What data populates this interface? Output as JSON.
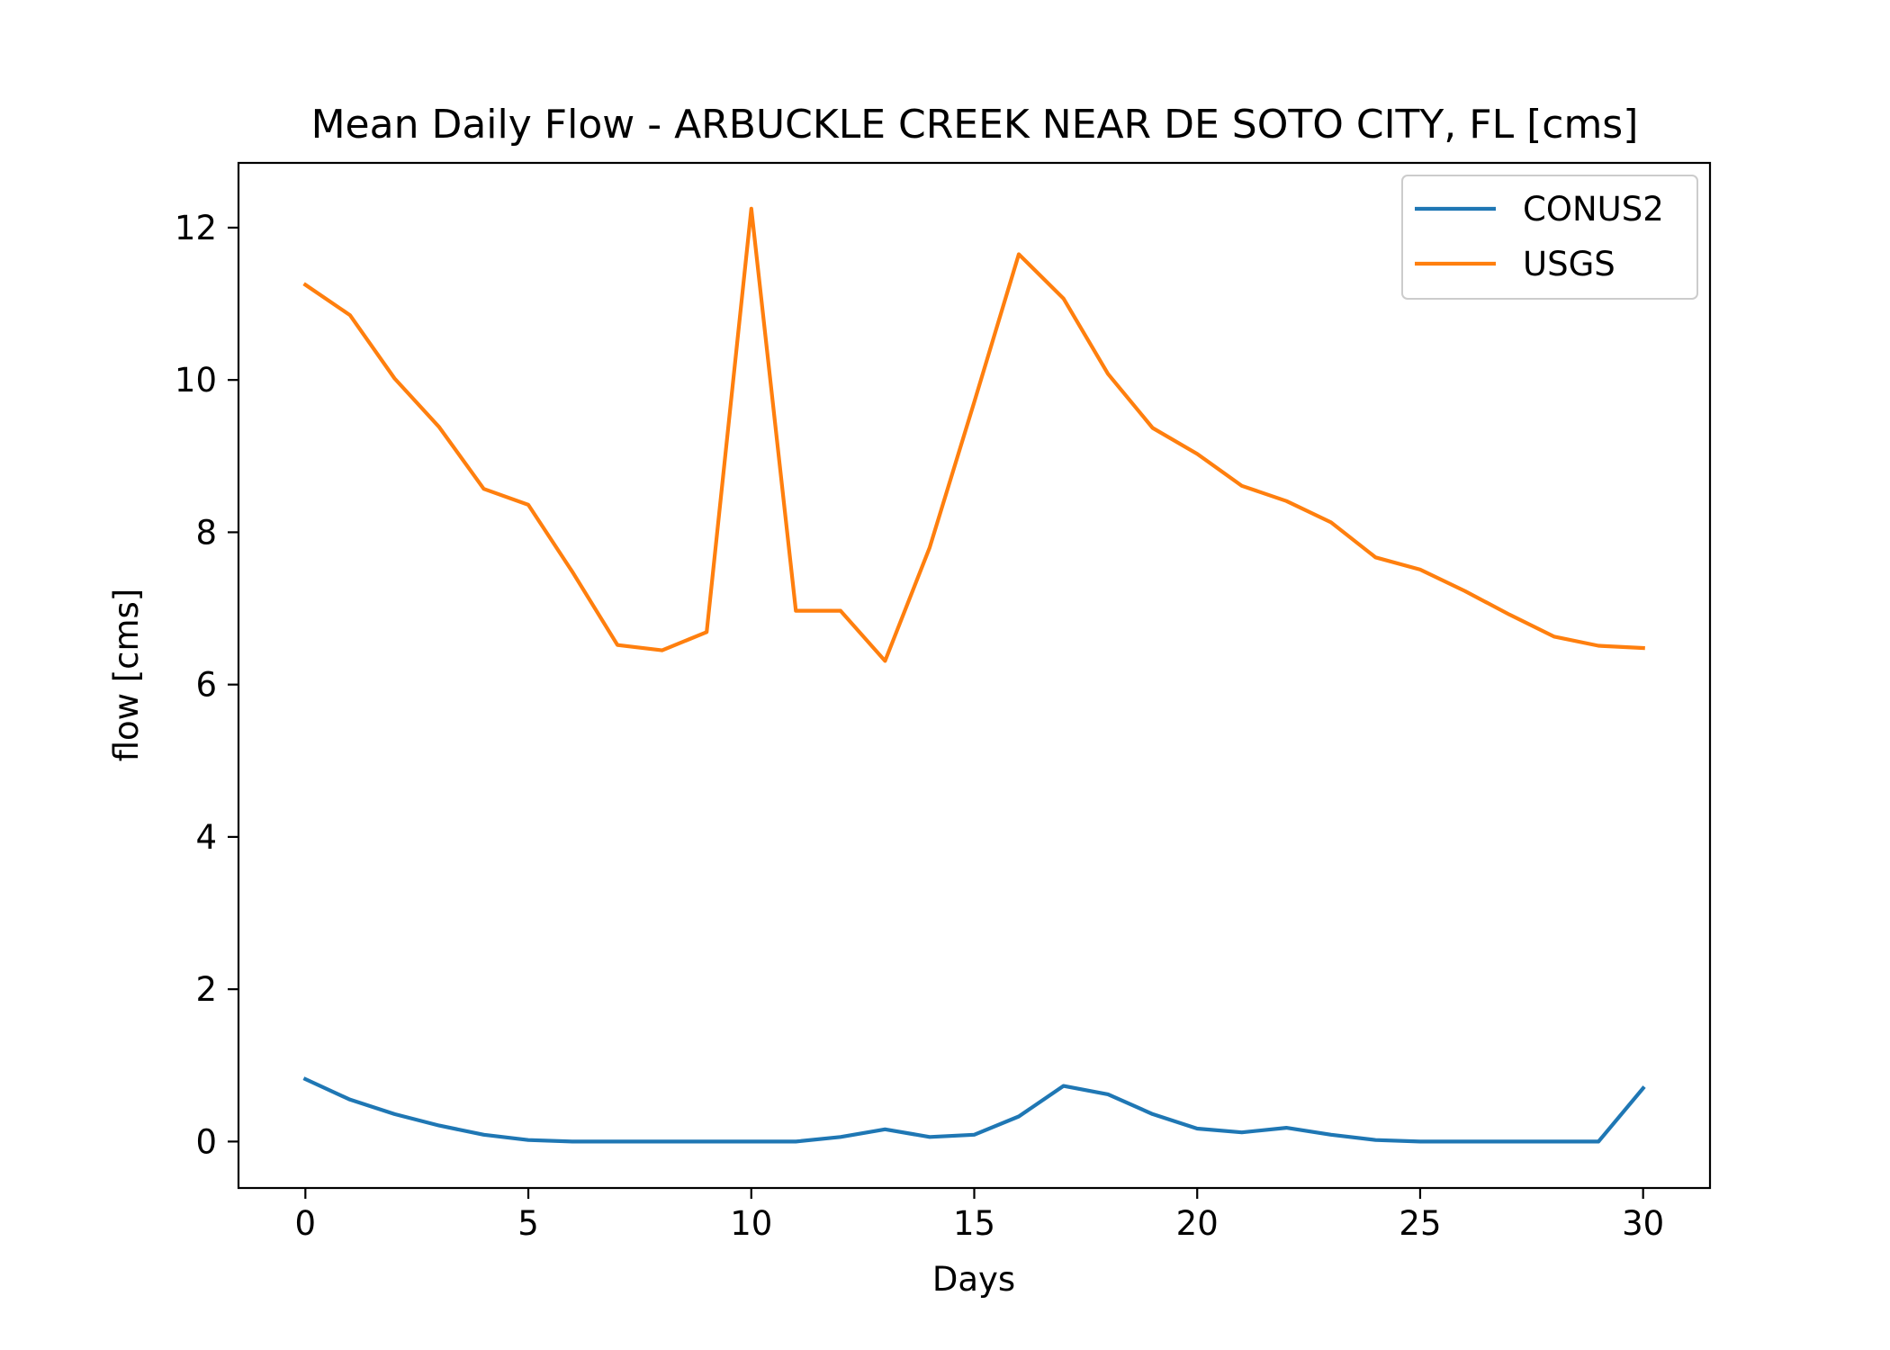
{
  "chart_data": {
    "type": "line",
    "title": "Mean Daily Flow - ARBUCKLE CREEK NEAR DE SOTO CITY, FL [cms]",
    "xlabel": "Days",
    "ylabel": "flow [cms]",
    "xlim": [
      -1.5,
      31.5
    ],
    "ylim": [
      -0.61,
      12.85
    ],
    "xticks": [
      0,
      5,
      10,
      15,
      20,
      25,
      30
    ],
    "yticks": [
      0,
      2,
      4,
      6,
      8,
      10,
      12
    ],
    "grid": false,
    "legend_position": "top-right",
    "x": [
      0,
      1,
      2,
      3,
      4,
      5,
      6,
      7,
      8,
      9,
      10,
      11,
      12,
      13,
      14,
      15,
      16,
      17,
      18,
      19,
      20,
      21,
      22,
      23,
      24,
      25,
      26,
      27,
      28,
      29,
      30
    ],
    "series": [
      {
        "name": "CONUS2",
        "color": "#1f77b4",
        "values": [
          0.82,
          0.55,
          0.36,
          0.21,
          0.09,
          0.02,
          0.0,
          0.0,
          0.0,
          0.0,
          0.0,
          0.0,
          0.06,
          0.16,
          0.06,
          0.09,
          0.33,
          0.73,
          0.62,
          0.36,
          0.17,
          0.12,
          0.18,
          0.09,
          0.02,
          0.0,
          0.0,
          0.0,
          0.0,
          0.0,
          0.7
        ]
      },
      {
        "name": "USGS",
        "color": "#ff7f0e",
        "values": [
          11.25,
          10.85,
          10.02,
          9.38,
          8.57,
          8.36,
          7.47,
          6.52,
          6.45,
          6.69,
          12.25,
          6.97,
          6.97,
          6.31,
          7.8,
          9.71,
          11.65,
          11.07,
          10.08,
          9.37,
          9.03,
          8.61,
          8.41,
          8.13,
          7.67,
          7.51,
          7.23,
          6.92,
          6.63,
          6.51,
          6.48
        ]
      }
    ]
  }
}
